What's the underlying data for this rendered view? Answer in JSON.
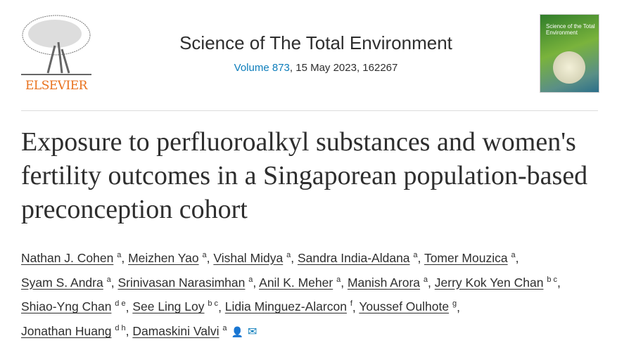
{
  "header": {
    "publisher": "ELSEVIER",
    "journal_title": "Science of The Total Environment",
    "volume_link": "Volume 873",
    "volume_rest": ", 15 May 2023, 162267",
    "cover_text": "Science of the Total Environment"
  },
  "article": {
    "title": "Exposure to perfluoroalkyl substances and women's fertility outcomes in a Singaporean population-based preconception cohort",
    "authors": [
      {
        "name": "Nathan J. Cohen",
        "aff": "a"
      },
      {
        "name": "Meizhen Yao",
        "aff": "a"
      },
      {
        "name": "Vishal Midya",
        "aff": "a"
      },
      {
        "name": "Sandra India-Aldana",
        "aff": "a"
      },
      {
        "name": "Tomer Mouzica",
        "aff": "a"
      },
      {
        "name": "Syam S. Andra",
        "aff": "a"
      },
      {
        "name": "Srinivasan Narasimhan",
        "aff": "a"
      },
      {
        "name": "Anil K. Meher",
        "aff": "a"
      },
      {
        "name": "Manish Arora",
        "aff": "a"
      },
      {
        "name": "Jerry Kok Yen Chan",
        "aff": "b c"
      },
      {
        "name": "Shiao-Yng Chan",
        "aff": "d e"
      },
      {
        "name": "See Ling Loy",
        "aff": "b c"
      },
      {
        "name": "Lidia Minguez-Alarcon",
        "aff": "f"
      },
      {
        "name": "Youssef Oulhote",
        "aff": "g"
      },
      {
        "name": "Jonathan Huang",
        "aff": "d h"
      },
      {
        "name": "Damaskini Valvi",
        "aff": "a"
      }
    ]
  }
}
